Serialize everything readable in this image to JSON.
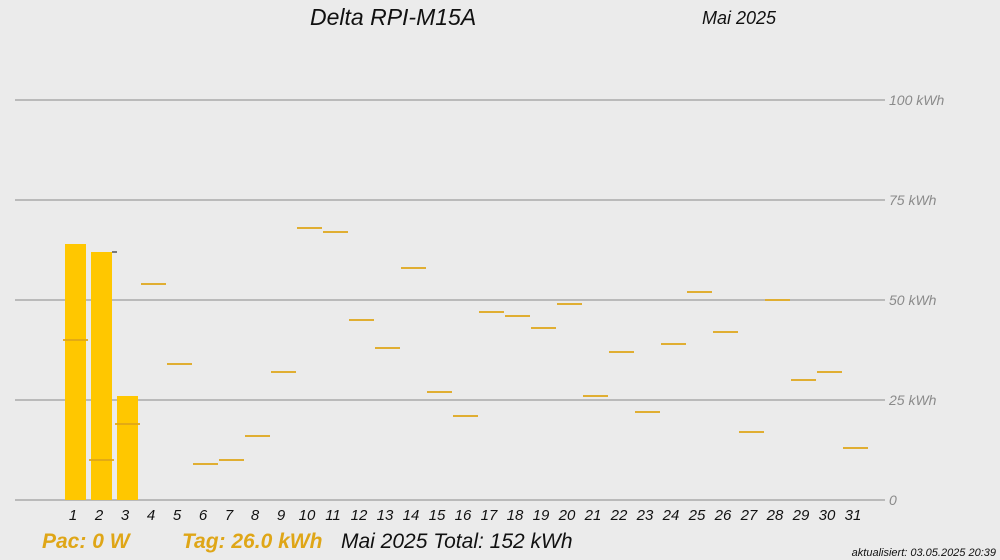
{
  "header": {
    "title": "Delta RPI-M15A",
    "month": "Mai 2025"
  },
  "status": {
    "pac": "Pac: 0 W",
    "tag": "Tag: 26.0 kWh",
    "total": "Mai 2025 Total:  152 kWh",
    "updated": "aktualisiert: 03.05.2025 20:39"
  },
  "colors": {
    "bar": "#ffc700",
    "reference_line": "#dfa617",
    "grid": "#8a8a8a",
    "axis_label": "#8a8a8a",
    "background": "#ebebeb"
  },
  "chart_data": {
    "type": "bar",
    "categories": [
      "1",
      "2",
      "3",
      "4",
      "5",
      "6",
      "7",
      "8",
      "9",
      "10",
      "11",
      "12",
      "13",
      "14",
      "15",
      "16",
      "17",
      "18",
      "19",
      "20",
      "21",
      "22",
      "23",
      "24",
      "25",
      "26",
      "27",
      "28",
      "29",
      "30",
      "31"
    ],
    "ylim": [
      0,
      100
    ],
    "y_tick_labels": [
      "0",
      "25 kWh",
      "50 kWh",
      "75 kWh",
      "100 kWh"
    ],
    "y_tick_values": [
      0,
      25,
      50,
      75,
      100
    ],
    "grid": true,
    "series": [
      {
        "values": [
          64.0,
          62.0,
          26.0,
          null,
          null,
          null,
          null,
          null,
          null,
          null,
          null,
          null,
          null,
          null,
          null,
          null,
          null,
          null,
          null,
          null,
          null,
          null,
          null,
          null,
          null,
          null,
          null,
          null,
          null,
          null,
          null
        ]
      },
      {
        "values": [
          40,
          10,
          19,
          54,
          34,
          9,
          10,
          16,
          32,
          68,
          67,
          45,
          38,
          58,
          27,
          21,
          47,
          46,
          43,
          49,
          26,
          37,
          22,
          39,
          52,
          42,
          17,
          50,
          30,
          32,
          13
        ]
      }
    ],
    "markers": [
      {
        "category": "2",
        "value": 62
      }
    ]
  }
}
